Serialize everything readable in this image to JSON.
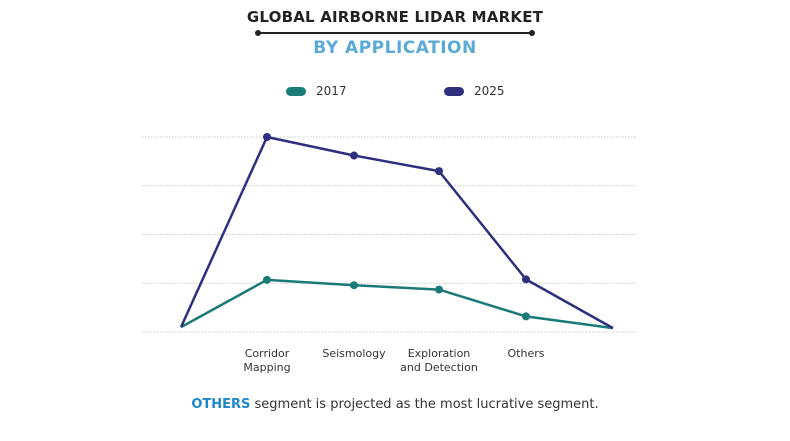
{
  "header": {
    "title": "GLOBAL AIRBORNE LIDAR MARKET",
    "subtitle": "BY APPLICATION"
  },
  "colors": {
    "series_2017": "#1a7a78",
    "series_2025": "#2e2f7f",
    "accent": "#5aa9d6",
    "highlight": "#1e88c7",
    "grid": "#c8c8c8"
  },
  "footer": {
    "highlight": "OTHERS",
    "text": " segment is projected as the most lucrative segment."
  },
  "chart_data": {
    "type": "line",
    "title": "GLOBAL AIRBORNE LIDAR MARKET",
    "subtitle": "BY APPLICATION",
    "categories": [
      "",
      "Corridor Mapping",
      "Seismology",
      "Exploration and Detection",
      "Others",
      ""
    ],
    "category_lines": [
      [],
      [
        "Corridor",
        "Mapping"
      ],
      [
        "Seismology"
      ],
      [
        "Exploration",
        "and Detection"
      ],
      [
        "Others"
      ],
      []
    ],
    "series": [
      {
        "name": "2017",
        "values": [
          0.1,
          1.07,
          0.96,
          0.87,
          0.32,
          0.08
        ]
      },
      {
        "name": "2025",
        "values": [
          0.1,
          4.0,
          3.62,
          3.3,
          1.08,
          0.08
        ]
      }
    ],
    "ylim": [
      0,
      4
    ],
    "grid": true,
    "legend": "top-center",
    "y_axis_labels": false
  }
}
